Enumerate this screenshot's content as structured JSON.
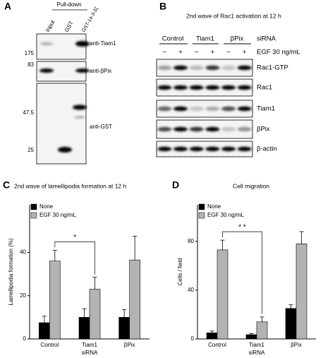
{
  "panels": {
    "A": {
      "label": "A",
      "pulldown": "Pull-down",
      "lanes": [
        "Input",
        "GST",
        "GST-14-3-3ζ"
      ],
      "markers": [
        175,
        83,
        47.5,
        25
      ],
      "antibodies": [
        "anti-Tiam1",
        "anti-βPix",
        "anti-GST"
      ]
    },
    "B": {
      "label": "B",
      "title": "2nd wave of Rac1 activation at 12 h",
      "groups": [
        "Control",
        "Tiam1",
        "βPix"
      ],
      "sirna": "siRNA",
      "signs": [
        "−",
        "+",
        "−",
        "+",
        "−",
        "+"
      ],
      "egf": "EGF 30 ng/mL",
      "blots": [
        "Rac1-GTP",
        "Rac1",
        "Tiam1",
        "βPix",
        "β-actin"
      ]
    }
  },
  "chart_data": [
    {
      "type": "bar",
      "panel_label": "C",
      "title": "2nd wave of lamellipodia formation at 12 h",
      "xlabel": "siRNA",
      "ylabel": "Lamellipodia formation (%)",
      "categories": [
        "Control",
        "Tiam1",
        "βPix"
      ],
      "series": [
        {
          "name": "None",
          "color": "#000000",
          "values": [
            7.5,
            10,
            10
          ],
          "errors": [
            3,
            4,
            3.5
          ]
        },
        {
          "name": "EGF 30 ng/mL",
          "color": "#b3b3b3",
          "values": [
            36,
            23,
            36.5
          ],
          "errors": [
            5,
            5.5,
            11
          ]
        }
      ],
      "ylim": [
        0,
        62
      ],
      "yticks": [
        0,
        20,
        40
      ],
      "annotation": "*"
    },
    {
      "type": "bar",
      "panel_label": "D",
      "title": "Cell migration",
      "xlabel": "siRNA",
      "ylabel": "Cells / field",
      "categories": [
        "Control",
        "Tiam1",
        "βPix"
      ],
      "series": [
        {
          "name": "None",
          "color": "#000000",
          "values": [
            5,
            3.5,
            25
          ],
          "errors": [
            1.5,
            1,
            3
          ]
        },
        {
          "name": "EGF 30 ng/mL",
          "color": "#b3b3b3",
          "values": [
            73,
            14,
            78
          ],
          "errors": [
            8,
            4,
            10
          ]
        }
      ],
      "ylim": [
        0,
        110
      ],
      "yticks": [
        0,
        40,
        80
      ],
      "annotation": "* *"
    }
  ]
}
